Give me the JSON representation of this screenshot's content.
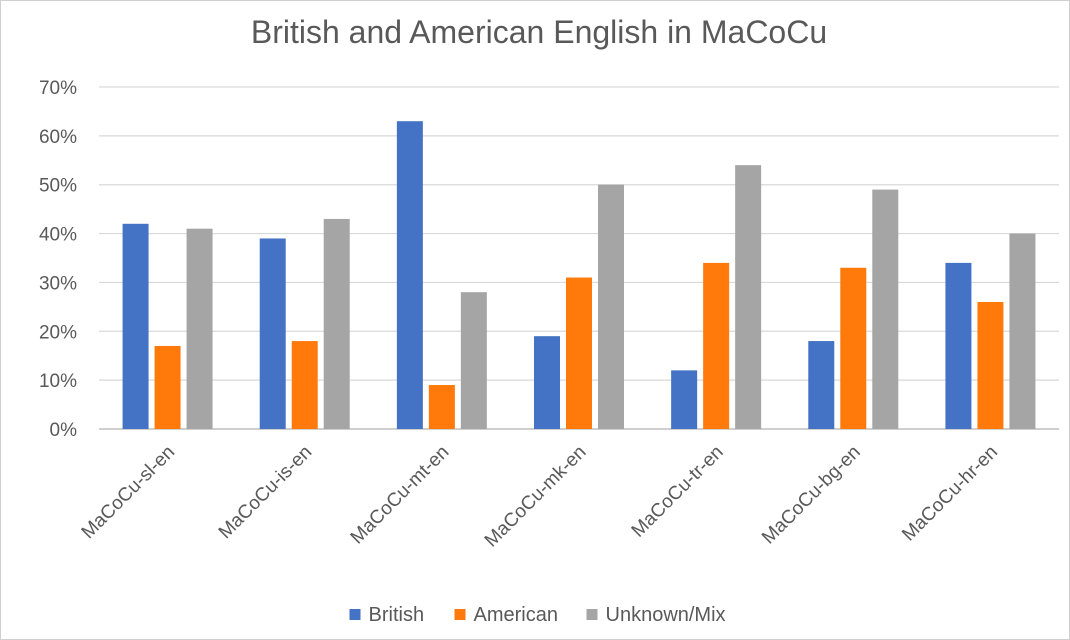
{
  "chart_data": {
    "type": "bar",
    "title": "British and American English in MaCoCu",
    "xlabel": "",
    "ylabel": "",
    "ylim": [
      0,
      70
    ],
    "y_ticks": [
      "0%",
      "10%",
      "20%",
      "30%",
      "40%",
      "50%",
      "60%",
      "70%"
    ],
    "grid": true,
    "legend_position": "bottom",
    "categories": [
      "MaCoCu-sl-en",
      "MaCoCu-is-en",
      "MaCoCu-mt-en",
      "MaCoCu-mk-en",
      "MaCoCu-tr-en",
      "MaCoCu-bg-en",
      "MaCoCu-hr-en"
    ],
    "series": [
      {
        "name": "British",
        "color": "#4472c4",
        "values": [
          42,
          39,
          63,
          19,
          12,
          18,
          34
        ]
      },
      {
        "name": "American",
        "color": "#ff7a0a",
        "values": [
          17,
          18,
          9,
          31,
          34,
          33,
          26
        ]
      },
      {
        "name": "Unknown/Mix",
        "color": "#a5a5a5",
        "values": [
          41,
          43,
          28,
          50,
          54,
          49,
          40
        ]
      }
    ]
  }
}
